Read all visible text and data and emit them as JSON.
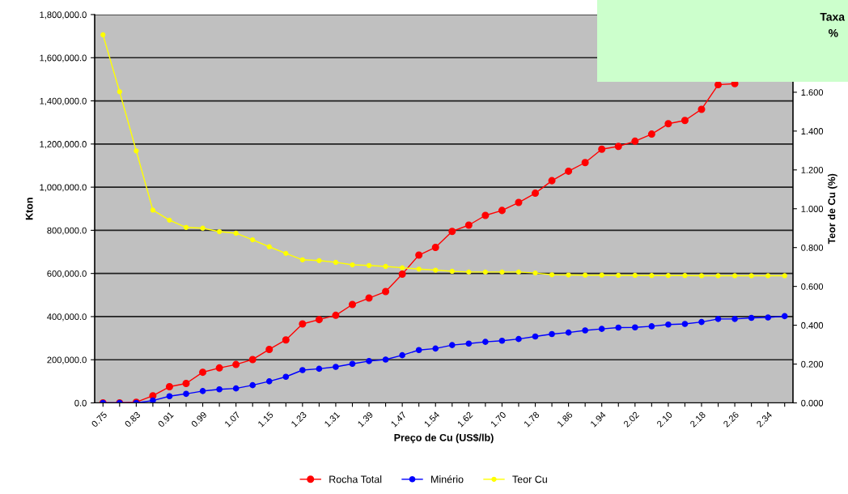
{
  "chart_data": {
    "type": "line",
    "xlabel": "Preço de Cu (US$/lb)",
    "ylabel": "Kton",
    "y2label": "Teor de Cu (%)",
    "categories": [
      "0.75",
      null,
      "0.83",
      null,
      "0.91",
      null,
      "0.99",
      null,
      "1.07",
      null,
      "1.15",
      null,
      "1.23",
      null,
      "1.31",
      null,
      "1.39",
      null,
      "1.47",
      null,
      "1.54",
      null,
      "1.62",
      null,
      "1.70",
      null,
      "1.78",
      null,
      "1.86",
      null,
      "1.94",
      null,
      "2.02",
      null,
      "2.10",
      null,
      "2.18",
      null,
      "2.26",
      null,
      "2.34",
      null
    ],
    "series": [
      {
        "name": "Rocha Total",
        "color": "#ff0000",
        "values": [
          0,
          0,
          3000,
          33000,
          75000,
          90000,
          142000,
          162000,
          178000,
          201000,
          248000,
          292000,
          366000,
          386000,
          406000,
          456000,
          486000,
          516000,
          597000,
          685000,
          721000,
          795000,
          824000,
          869000,
          892000,
          929000,
          972000,
          1030000,
          1074000,
          1114000,
          1176000,
          1189000,
          1213000,
          1246000,
          1294000,
          1309000,
          1361000,
          1475000,
          1480000,
          null,
          null,
          null
        ]
      },
      {
        "name": "Minério",
        "color": "#0000ff",
        "values": [
          0,
          0,
          0,
          11000,
          31000,
          42000,
          55000,
          63000,
          67000,
          82000,
          100000,
          121000,
          152000,
          158000,
          167000,
          181000,
          194000,
          201000,
          221000,
          245000,
          252000,
          268000,
          275000,
          283000,
          288000,
          296000,
          308000,
          319000,
          326000,
          336000,
          343000,
          349000,
          350000,
          355000,
          363000,
          366000,
          375000,
          389000,
          389000,
          394000,
          396000,
          402000
        ]
      },
      {
        "name": "Teor Cu",
        "color": "#ffff00",
        "axis": "y2",
        "values": [
          1.896,
          1.603,
          1.298,
          0.993,
          0.941,
          0.904,
          0.9,
          0.882,
          0.874,
          0.84,
          0.804,
          0.77,
          0.737,
          0.733,
          0.724,
          0.711,
          0.708,
          0.703,
          0.696,
          0.689,
          0.684,
          0.678,
          0.674,
          0.674,
          0.674,
          0.674,
          0.669,
          0.66,
          0.659,
          0.658,
          0.658,
          0.657,
          0.657,
          0.656,
          0.656,
          0.656,
          0.655,
          0.655,
          0.655,
          0.655,
          0.655,
          0.655
        ]
      }
    ],
    "ylim": [
      0,
      1800000
    ],
    "yticks": [
      {
        "value": 0,
        "label": "0.0"
      },
      {
        "value": 200000,
        "label": "200,000.0"
      },
      {
        "value": 400000,
        "label": "400,000.0"
      },
      {
        "value": 600000,
        "label": "600,000.0"
      },
      {
        "value": 800000,
        "label": "800,000.0"
      },
      {
        "value": 1000000,
        "label": "1,000,000.0"
      },
      {
        "value": 1200000,
        "label": "1,200,000.0"
      },
      {
        "value": 1400000,
        "label": "1,400,000.0"
      },
      {
        "value": 1600000,
        "label": "1,600,000.0"
      },
      {
        "value": 1800000,
        "label": "1,800,000.0"
      }
    ],
    "y2lim": [
      0,
      2.0
    ],
    "y2ticks": [
      {
        "value": 0,
        "label": "0.000"
      },
      {
        "value": 0.2,
        "label": "0.200"
      },
      {
        "value": 0.4,
        "label": "0.400"
      },
      {
        "value": 0.6,
        "label": "0.600"
      },
      {
        "value": 0.8,
        "label": "0.800"
      },
      {
        "value": 1.0,
        "label": "1.000"
      },
      {
        "value": 1.2,
        "label": "1.200"
      },
      {
        "value": 1.4,
        "label": "1.400"
      },
      {
        "value": 1.6,
        "label": "1.600"
      }
    ],
    "annotations": [
      "Taxa",
      "%"
    ],
    "grid": "y",
    "legend": "bottom",
    "marker": "circle",
    "line_style": "solid"
  }
}
